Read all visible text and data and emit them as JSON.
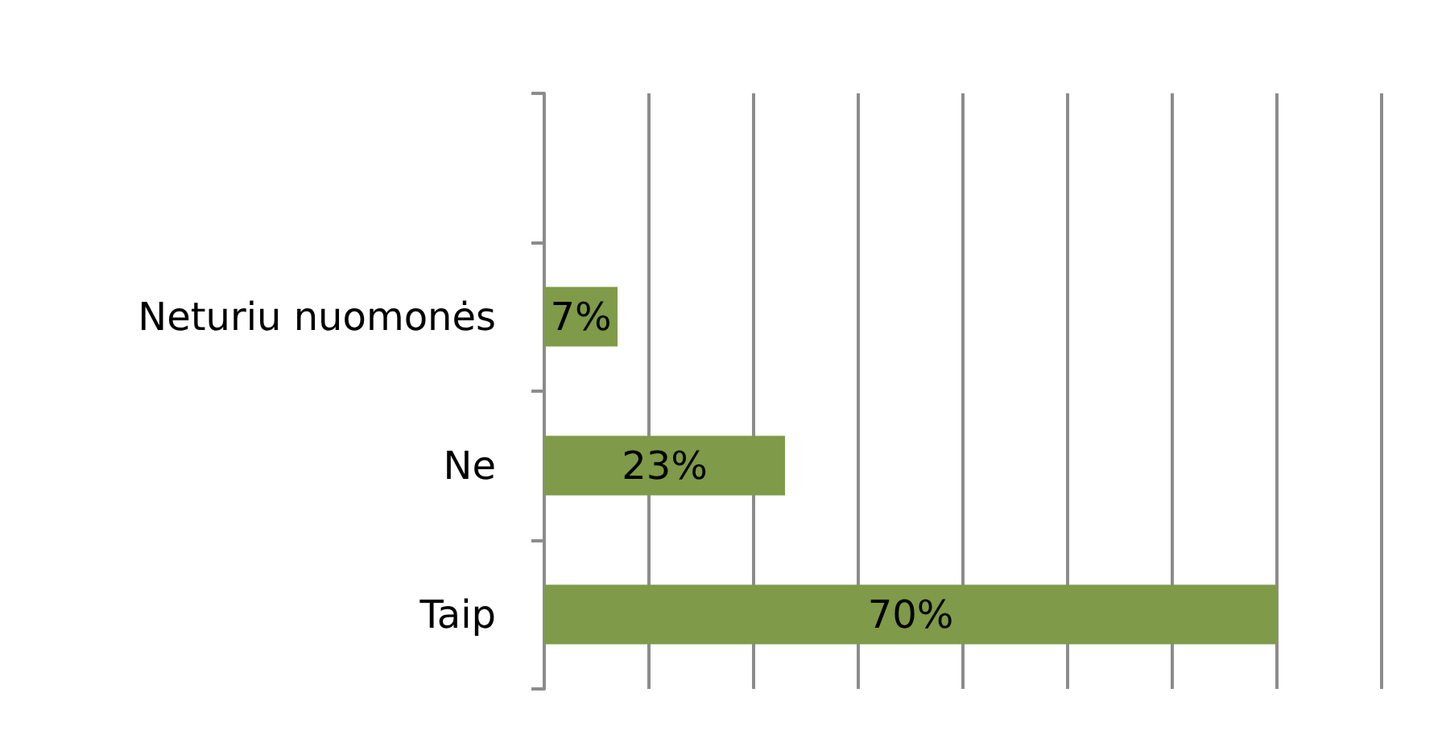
{
  "chart_data": {
    "type": "bar",
    "orientation": "horizontal",
    "categories": [
      null,
      "Neturiu nuomonės",
      "Ne",
      "Taip"
    ],
    "values": [
      null,
      7,
      23,
      70
    ],
    "color": "#7f9a48",
    "value_labels": [
      null,
      "7%",
      "23%",
      "70%"
    ],
    "xlim": [
      0,
      80
    ],
    "xticks": [
      {
        "value": 0,
        "label": null
      },
      {
        "value": 10,
        "label": null
      },
      {
        "value": 20,
        "label": null
      },
      {
        "value": 30,
        "label": null
      },
      {
        "value": 40,
        "label": null
      },
      {
        "value": 50,
        "label": null
      },
      {
        "value": 60,
        "label": null
      },
      {
        "value": 70,
        "label": null
      },
      {
        "value": 80,
        "label": null
      }
    ],
    "grid": "x",
    "tick_labels": "y"
  }
}
